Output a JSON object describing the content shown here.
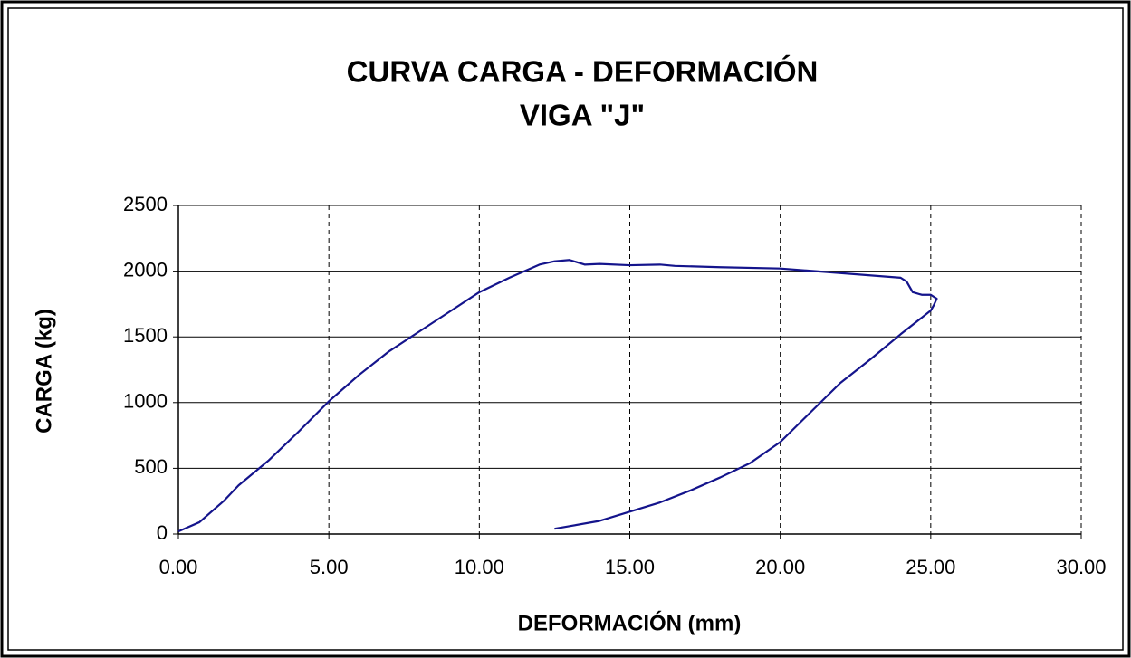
{
  "chart_data": {
    "type": "line",
    "title": "CURVA CARGA - DEFORMACIÓN",
    "subtitle": "VIGA \"J\"",
    "xlabel": "DEFORMACIÓN (mm)",
    "ylabel": "CARGA (kg)",
    "x": [
      0,
      0.3,
      0.7,
      1.0,
      1.5,
      2,
      3,
      4,
      5,
      6,
      7,
      8,
      9,
      10,
      11,
      12,
      12.5,
      13,
      13.5,
      14,
      15,
      16,
      16.5,
      18,
      20,
      22,
      24,
      24.2,
      24.4,
      24.7,
      25,
      25.2,
      25.1,
      25,
      24,
      23,
      22,
      20,
      19,
      18,
      17,
      16,
      15,
      14,
      13,
      12.5
    ],
    "values": [
      20,
      50,
      90,
      150,
      250,
      370,
      560,
      780,
      1010,
      1210,
      1390,
      1540,
      1690,
      1840,
      1950,
      2050,
      2075,
      2085,
      2050,
      2055,
      2045,
      2050,
      2040,
      2030,
      2020,
      1985,
      1950,
      1920,
      1840,
      1820,
      1820,
      1790,
      1740,
      1700,
      1520,
      1330,
      1150,
      700,
      540,
      430,
      330,
      240,
      170,
      100,
      60,
      40
    ],
    "color": "#14148c",
    "xlim": [
      0,
      30
    ],
    "xticks": [
      {
        "value": 0,
        "label": "0.00"
      },
      {
        "value": 5,
        "label": "5.00"
      },
      {
        "value": 10,
        "label": "10.00"
      },
      {
        "value": 15,
        "label": "15.00"
      },
      {
        "value": 20,
        "label": "20.00"
      },
      {
        "value": 25,
        "label": "25.00"
      },
      {
        "value": 30,
        "label": "30.00"
      }
    ],
    "ylim": [
      0,
      2500
    ],
    "yticks": [
      0,
      500,
      1000,
      1500,
      2000,
      2500
    ],
    "grid": true
  }
}
